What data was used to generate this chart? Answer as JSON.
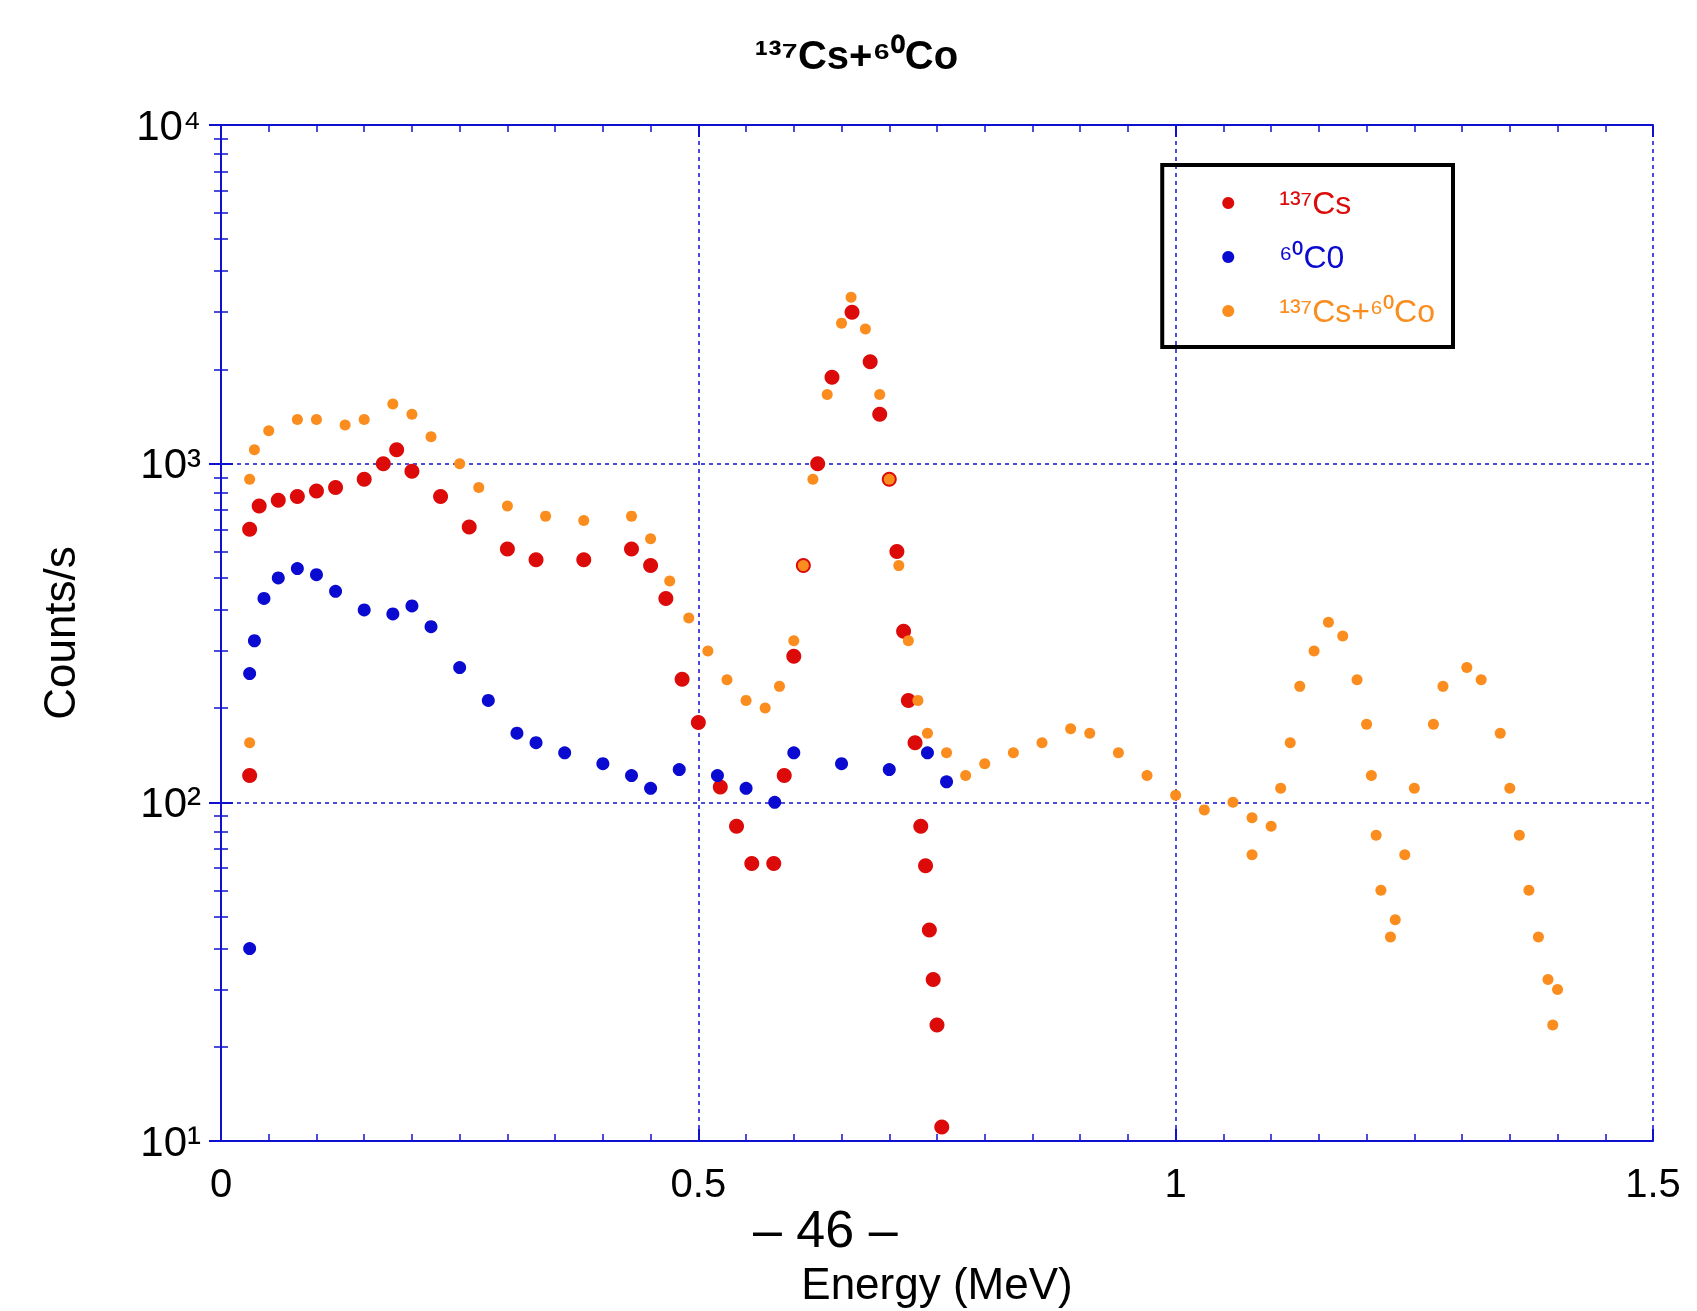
{
  "chart_data": {
    "type": "scatter",
    "title": "¹³⁷Cs+⁶⁰Co",
    "xlabel": "Energy (MeV)",
    "ylabel": "Counts/s",
    "log": "y",
    "grid": true,
    "legend": "top right",
    "marker": "circle",
    "xlim": [
      0,
      1.5
    ],
    "xticks": [
      0,
      0.5,
      1,
      1.5
    ],
    "ylim": [
      10,
      10000
    ],
    "yticks": [
      {
        "value": 10,
        "label": "10¹"
      },
      {
        "value": 100,
        "label": "10²"
      },
      {
        "value": 1000,
        "label": "10³"
      },
      {
        "value": 10000,
        "label": "10⁴"
      }
    ],
    "annotations": [
      "– 46 –"
    ],
    "series": [
      {
        "name": "¹³⁷Cs",
        "color": "#dd0a0a",
        "x": [
          0.03,
          0.03,
          0.04,
          0.06,
          0.08,
          0.1,
          0.12,
          0.15,
          0.17,
          0.184,
          0.2,
          0.23,
          0.26,
          0.3,
          0.33,
          0.38,
          0.43,
          0.45,
          0.466,
          0.483,
          0.5,
          0.523,
          0.54,
          0.556,
          0.579,
          0.59,
          0.6,
          0.61,
          0.625,
          0.64,
          0.661,
          0.68,
          0.69,
          0.7,
          0.708,
          0.715,
          0.72,
          0.727,
          0.733,
          0.738,
          0.742,
          0.746,
          0.75,
          0.755
        ],
        "values": [
          120,
          640,
          750,
          780,
          800,
          830,
          850,
          900,
          1000,
          1100,
          950,
          800,
          650,
          560,
          520,
          520,
          560,
          500,
          400,
          231,
          172,
          111,
          85,
          66,
          66,
          120,
          270,
          500,
          1000,
          1800,
          2800,
          2000,
          1400,
          900,
          550,
          320,
          200,
          150,
          85,
          65,
          42,
          30,
          22,
          11
        ]
      },
      {
        "name": "⁶⁰C0",
        "color": "#0a0ad0",
        "x": [
          0.03,
          0.03,
          0.035,
          0.045,
          0.06,
          0.08,
          0.1,
          0.12,
          0.15,
          0.18,
          0.2,
          0.22,
          0.25,
          0.28,
          0.31,
          0.33,
          0.36,
          0.4,
          0.43,
          0.45,
          0.48,
          0.52,
          0.55,
          0.58,
          0.6,
          0.65,
          0.7,
          0.74,
          0.76
        ],
        "values": [
          37,
          240,
          300,
          400,
          460,
          490,
          470,
          420,
          370,
          360,
          380,
          330,
          250,
          200,
          160,
          150,
          140,
          130,
          120,
          110,
          125,
          120,
          110,
          100,
          140,
          130,
          125,
          140,
          115
        ]
      },
      {
        "name": "¹³⁷Cs+⁶⁰Co",
        "color": "#fb8c1e",
        "x": [
          0.03,
          0.03,
          0.035,
          0.05,
          0.08,
          0.1,
          0.13,
          0.15,
          0.18,
          0.2,
          0.22,
          0.25,
          0.27,
          0.3,
          0.34,
          0.38,
          0.43,
          0.45,
          0.47,
          0.49,
          0.51,
          0.53,
          0.55,
          0.57,
          0.585,
          0.6,
          0.61,
          0.62,
          0.635,
          0.65,
          0.66,
          0.675,
          0.69,
          0.7,
          0.71,
          0.72,
          0.73,
          0.74,
          0.76,
          0.78,
          0.8,
          0.83,
          0.86,
          0.89,
          0.91,
          0.94,
          0.97,
          1.0,
          1.03,
          1.06,
          1.08,
          1.08,
          1.1,
          1.11,
          1.12,
          1.13,
          1.145,
          1.16,
          1.175,
          1.19,
          1.2,
          1.205,
          1.21,
          1.215,
          1.225,
          1.23,
          1.24,
          1.25,
          1.27,
          1.28,
          1.305,
          1.32,
          1.34,
          1.35,
          1.36,
          1.37,
          1.38,
          1.39,
          1.395,
          1.4
        ],
        "values": [
          150,
          900,
          1100,
          1250,
          1350,
          1350,
          1300,
          1350,
          1500,
          1400,
          1200,
          1000,
          850,
          750,
          700,
          680,
          700,
          600,
          450,
          350,
          280,
          230,
          200,
          190,
          220,
          300,
          500,
          900,
          1600,
          2600,
          3100,
          2500,
          1600,
          900,
          500,
          300,
          200,
          160,
          140,
          120,
          130,
          140,
          150,
          165,
          160,
          140,
          120,
          105,
          95,
          100,
          90,
          70,
          85,
          110,
          150,
          220,
          280,
          340,
          310,
          230,
          170,
          120,
          80,
          55,
          40,
          45,
          70,
          110,
          170,
          220,
          250,
          230,
          160,
          110,
          80,
          55,
          40,
          30,
          22,
          28
        ]
      }
    ]
  }
}
